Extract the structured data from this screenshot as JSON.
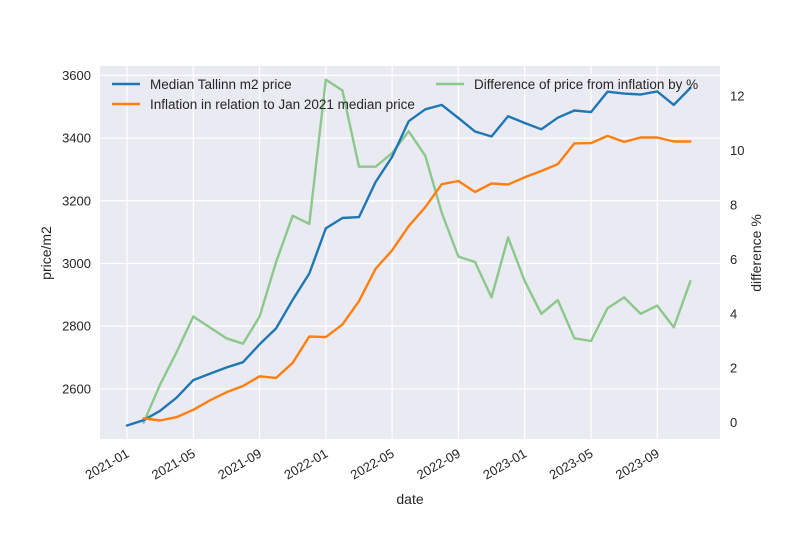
{
  "chart_data": {
    "type": "line",
    "xlabel": "date",
    "ylabel": "price/m2",
    "y2label": "difference %",
    "ylim": [
      2440,
      3630
    ],
    "y2lim": [
      -0.6,
      13.1
    ],
    "yticks": [
      2600,
      2800,
      3000,
      3200,
      3400,
      3600
    ],
    "y2ticks": [
      0,
      2,
      4,
      6,
      8,
      10,
      12
    ],
    "xticks": [
      "2021-01",
      "2021-05",
      "2021-09",
      "2022-01",
      "2022-05",
      "2022-09",
      "2023-01",
      "2023-05",
      "2023-09"
    ],
    "x": [
      "2021-01",
      "2021-02",
      "2021-03",
      "2021-04",
      "2021-05",
      "2021-06",
      "2021-07",
      "2021-08",
      "2021-09",
      "2021-10",
      "2021-11",
      "2021-12",
      "2022-01",
      "2022-02",
      "2022-03",
      "2022-04",
      "2022-05",
      "2022-06",
      "2022-07",
      "2022-08",
      "2022-09",
      "2022-10",
      "2022-11",
      "2022-12",
      "2023-01",
      "2023-02",
      "2023-03",
      "2023-04",
      "2023-05",
      "2023-06",
      "2023-07",
      "2023-08",
      "2023-09",
      "2023-10",
      "2023-11"
    ],
    "grid": true,
    "background": "#eaeaf2",
    "series": [
      {
        "name": "Median Tallinn m2 price",
        "axis": "left",
        "color": "#1f77b4",
        "values": [
          2483,
          2500,
          2530,
          2572,
          2628,
          2648,
          2668,
          2685,
          2742,
          2793,
          2884,
          2968,
          3112,
          3145,
          3148,
          3260,
          3340,
          3454,
          3492,
          3506,
          3464,
          3421,
          3405,
          3470,
          3448,
          3428,
          3465,
          3488,
          3483,
          3548,
          3542,
          3539,
          3549,
          3506,
          3560
        ]
      },
      {
        "name": "Inflation in relation to Jan 2021 median price",
        "axis": "left",
        "color": "#ff7f0e",
        "values": [
          null,
          2506,
          2499,
          2510,
          2533,
          2563,
          2589,
          2609,
          2640,
          2635,
          2683,
          2767,
          2765,
          2805,
          2880,
          2983,
          3042,
          3119,
          3180,
          3253,
          3263,
          3228,
          3255,
          3252,
          3275,
          3295,
          3317,
          3383,
          3384,
          3407,
          3388,
          3402,
          3402,
          3389,
          3389
        ]
      },
      {
        "name": "Difference of price from inflation by %",
        "axis": "right",
        "color": "#8cc78c",
        "values": [
          null,
          0.0,
          1.4,
          2.6,
          3.9,
          3.5,
          3.1,
          2.9,
          3.9,
          5.9,
          7.6,
          7.3,
          12.6,
          12.2,
          9.4,
          9.4,
          9.9,
          10.7,
          9.8,
          7.7,
          6.1,
          5.9,
          4.6,
          6.8,
          5.2,
          4.0,
          4.5,
          3.1,
          3.0,
          4.2,
          4.6,
          4.0,
          4.3,
          3.5,
          5.2
        ]
      }
    ]
  }
}
